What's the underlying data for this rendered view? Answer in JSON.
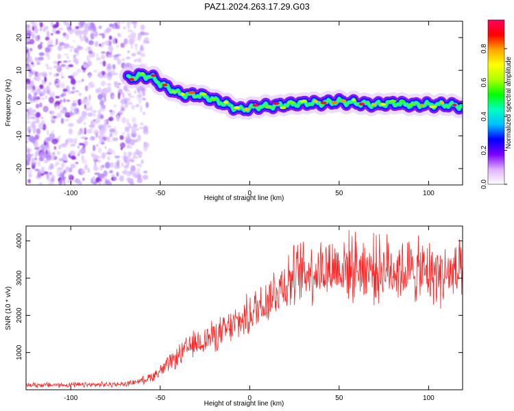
{
  "title": "PAZ1.2024.263.17.29.G03",
  "chart_data": [
    {
      "type": "heatmap",
      "xlabel": "Height of straight line (km)",
      "ylabel": "Frequency (Hz)",
      "xlim": [
        -125,
        119
      ],
      "ylim": [
        -25,
        25
      ],
      "xticks": [
        -100,
        -50,
        0,
        50,
        100
      ],
      "yticks": [
        -20,
        -10,
        0,
        10,
        20
      ],
      "grid": false,
      "colorbar": {
        "label": "Normalized spectral amplitude",
        "range": [
          0,
          0.97
        ],
        "ticks": [
          0.0,
          0.2,
          0.4,
          0.6,
          0.8
        ],
        "colormap": [
          "#ffffff",
          "#e0b0ff",
          "#7a00ff",
          "#0000ff",
          "#00bfff",
          "#00ffbf",
          "#00ff00",
          "#b0ff00",
          "#ffff00",
          "#ffa500",
          "#ff0000",
          "#ff0060"
        ]
      },
      "ridge": {
        "x": [
          -68,
          -60,
          -55,
          -50,
          -45,
          -40,
          -35,
          -30,
          -25,
          -20,
          -15,
          -10,
          -5,
          0,
          5,
          10,
          20,
          30,
          40,
          50,
          60,
          70,
          80,
          90,
          100,
          110,
          119
        ],
        "frequency": [
          7.5,
          8.5,
          8,
          6,
          4.5,
          3,
          2.5,
          2.5,
          2,
          1,
          0,
          -1,
          -2,
          -1.5,
          -1,
          -1,
          -0.5,
          0,
          0,
          0.5,
          0,
          -0.5,
          0,
          -0.5,
          -0.5,
          -0.5,
          -1
        ]
      },
      "noise_region": [
        -125,
        -63
      ]
    },
    {
      "type": "line",
      "xlabel": "Height of straight line (km)",
      "ylabel": "SNR (10 * v/v)",
      "xlim": [
        -125,
        119
      ],
      "ylim": [
        0,
        4400
      ],
      "xticks": [
        -100,
        -50,
        0,
        50,
        100
      ],
      "yticks": [
        1000,
        2000,
        3000,
        4000
      ],
      "grid": false,
      "line_color": "#ff2020",
      "series": [
        {
          "x": [
            -125,
            -110,
            -90,
            -70,
            -60,
            -55,
            -50,
            -45,
            -40,
            -35,
            -30,
            -25,
            -20,
            -15,
            -10,
            -5,
            0,
            5,
            10,
            15,
            20,
            25,
            30,
            40,
            50,
            60,
            70,
            80,
            90,
            100,
            110,
            119
          ],
          "values": [
            130,
            130,
            130,
            150,
            250,
            350,
            500,
            700,
            900,
            1100,
            1250,
            1350,
            1450,
            1550,
            1700,
            1850,
            2000,
            2250,
            2450,
            2700,
            2900,
            3050,
            3150,
            3250,
            3300,
            3300,
            3250,
            3250,
            3200,
            3150,
            3100,
            3100
          ]
        }
      ]
    }
  ]
}
